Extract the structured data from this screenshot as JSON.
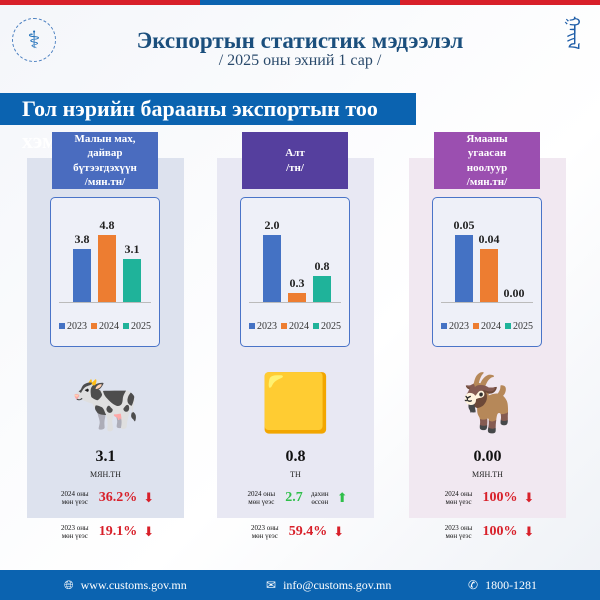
{
  "header": {
    "title": "Экспортын статистик мэдээлэл",
    "subtitle": "/ 2025 оны эхний 1 сар /"
  },
  "banner": "Гол нэрийн барааны экспортын тоо хэмжээ",
  "colors": {
    "2023": "#4472c4",
    "2024": "#ed7d31",
    "2025": "#1fb39a",
    "accent": "#0b63b0",
    "down": "#d8202a",
    "up": "#2fbf4a"
  },
  "legend": [
    "2023",
    "2024",
    "2025"
  ],
  "chart_data": [
    {
      "type": "bar",
      "title": "Малын мах, дайвар бүтээгдэхүүн /мян.тн/",
      "categories": [
        "2023",
        "2024",
        "2025"
      ],
      "values": [
        3.8,
        4.8,
        3.1
      ],
      "labels": [
        "3.8",
        "4.8",
        "3.1"
      ]
    },
    {
      "type": "bar",
      "title": "Алт /тн/",
      "categories": [
        "2023",
        "2024",
        "2025"
      ],
      "values": [
        2.0,
        0.3,
        0.8
      ],
      "labels": [
        "2.0",
        "0.3",
        "0.8"
      ]
    },
    {
      "type": "bar",
      "title": "Ямааны угаасан ноолуур /мян.тн/",
      "categories": [
        "2023",
        "2024",
        "2025"
      ],
      "values": [
        0.05,
        0.04,
        0.0
      ],
      "labels": [
        "0.05",
        "0.04",
        "0.00"
      ]
    }
  ],
  "panels": [
    {
      "title_lines": [
        "Малын мах,",
        "дайвар",
        "бүтээгдэхүүн",
        "/мян.тн/"
      ],
      "icon": "cow-icon",
      "value": "3.1",
      "unit": "МЯН.ТН",
      "cmp": [
        {
          "l1": "2024 оны",
          "l2": "мөн үеэс",
          "v": "36.2%",
          "dir": "down"
        },
        {
          "l1": "2023 оны",
          "l2": "мөн үеэс",
          "v": "19.1%",
          "dir": "down"
        }
      ]
    },
    {
      "title_lines": [
        "Алт",
        "/тн/"
      ],
      "icon": "gold-bars-icon",
      "value": "0.8",
      "unit": "ТН",
      "cmp": [
        {
          "l1": "2024 оны",
          "l2": "мөн үеэс",
          "v": "2.7",
          "extra1": "дахин",
          "extra2": "өссөн",
          "dir": "up"
        },
        {
          "l1": "2023 оны",
          "l2": "мөн үеэс",
          "v": "59.4%",
          "dir": "down"
        }
      ]
    },
    {
      "title_lines": [
        "Ямааны",
        "угаасан",
        "ноолуур",
        "/мян.тн/"
      ],
      "icon": "goat-icon",
      "value": "0.00",
      "unit": "МЯН.ТН",
      "cmp": [
        {
          "l1": "2024 оны",
          "l2": "мөн үеэс",
          "v": "100%",
          "dir": "down"
        },
        {
          "l1": "2023 оны",
          "l2": "мөн үеэс",
          "v": "100%",
          "dir": "down"
        }
      ]
    }
  ],
  "footer": {
    "web": "www.customs.gov.mn",
    "email": "info@customs.gov.mn",
    "phone": "1800-1281"
  }
}
